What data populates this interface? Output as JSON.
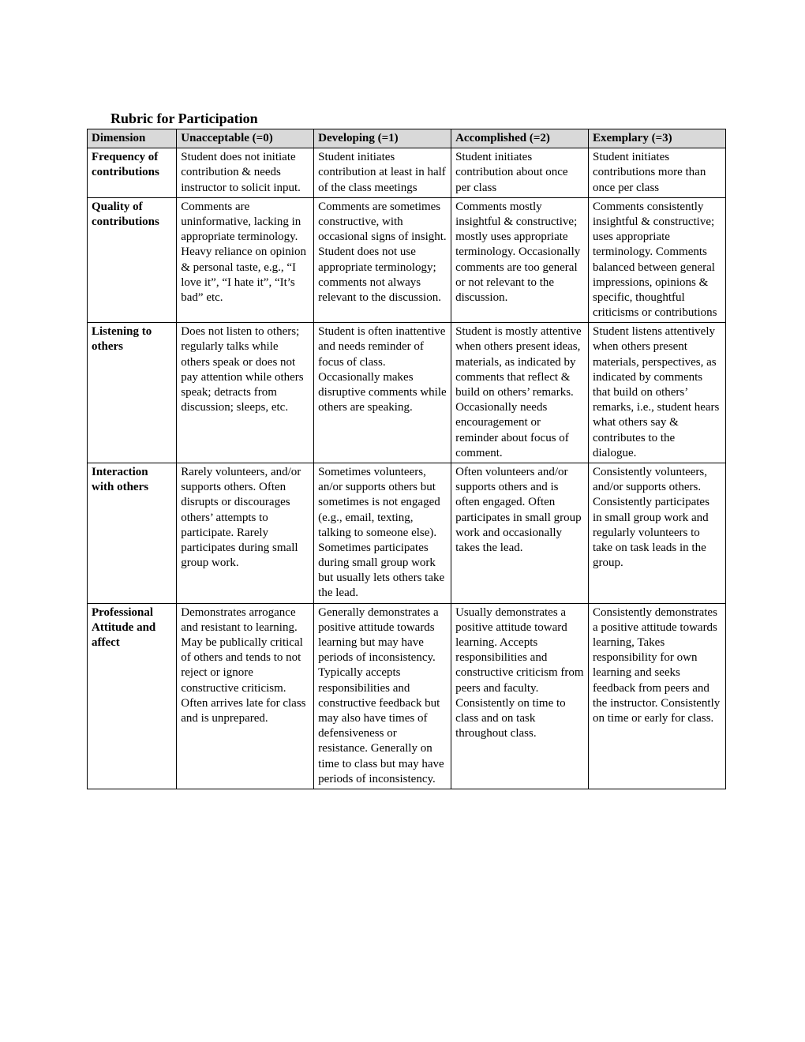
{
  "title": "Rubric for Participation",
  "columns": [
    "Dimension",
    "Unacceptable (=0)",
    "Developing (=1)",
    "Accomplished (=2)",
    "Exemplary (=3)"
  ],
  "rows": [
    {
      "dimension": "Frequency of contributions",
      "c0": "Student does not initiate contribution & needs instructor to solicit input.",
      "c1": "Student initiates contribution at least in half of the class meetings",
      "c2": "Student initiates contribution about once per class",
      "c3": "Student initiates contributions more than once per class"
    },
    {
      "dimension": "Quality of contributions",
      "c0": "Comments are uninformative, lacking in appropriate terminology. Heavy reliance on opinion & personal taste, e.g., “I love it”, “I hate it”, “It’s bad” etc.",
      "c1": "Comments are sometimes constructive, with occasional signs of insight. Student does not use appropriate terminology; comments not always relevant to the discussion.",
      "c2": "Comments mostly insightful & constructive; mostly uses appropriate terminology. Occasionally comments are too general or not relevant to the discussion.",
      "c3": "Comments consistently insightful & constructive; uses appropriate terminology. Comments balanced between general impressions, opinions & specific, thoughtful criticisms or contributions"
    },
    {
      "dimension": "Listening to others",
      "c0": "Does not listen to others; regularly talks while others speak or does not pay attention while others speak; detracts from discussion; sleeps, etc.",
      "c1": "Student is often inattentive and needs reminder of focus of class. Occasionally makes disruptive comments while others are speaking.",
      "c2": "Student is mostly attentive when others present ideas, materials, as indicated by comments that reflect & build on others’ remarks. Occasionally needs encouragement or reminder about focus of comment.",
      "c3": "Student listens attentively when others present materials, perspectives, as indicated by comments that build on others’ remarks, i.e., student hears what others say & contributes to the dialogue."
    },
    {
      "dimension": "Interaction with others",
      "c0": "Rarely volunteers, and/or supports others. Often disrupts or discourages others’ attempts to participate. Rarely participates during small group work.",
      "c1": "Sometimes volunteers, an/or supports others but sometimes is not engaged (e.g., email, texting, talking to someone else). Sometimes participates during small group work but usually lets others take the lead.",
      "c2": "Often volunteers and/or supports others and is often engaged. Often participates in small group work and occasionally takes the lead.",
      "c3": "Consistently volunteers, and/or supports others. Consistently participates in small group work and regularly volunteers to take on task leads in the group."
    },
    {
      "dimension": "Professional Attitude and affect",
      "c0": "Demonstrates arrogance and resistant to learning. May be publically critical of others and tends to not reject or ignore constructive criticism. Often arrives late for class and is unprepared.",
      "c1": "Generally demonstrates a positive attitude towards learning but may have periods of inconsistency. Typically accepts responsibilities and constructive feedback but may also have times of defensiveness or resistance. Generally on time to class but may have periods of inconsistency.",
      "c2": "Usually demonstrates a positive attitude toward learning. Accepts responsibilities and constructive criticism from peers and faculty. Consistently on time to class and on task throughout class.",
      "c3": "Consistently demonstrates a positive attitude towards learning, Takes responsibility for own learning and seeks feedback from peers and the instructor. Consistently on time or early for class."
    }
  ]
}
